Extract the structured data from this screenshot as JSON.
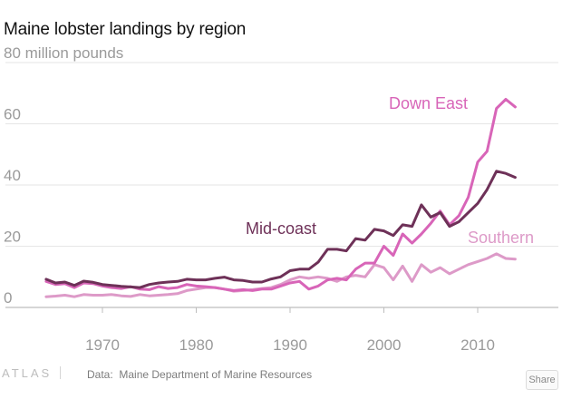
{
  "title": "Maine lobster landings by region",
  "footer": {
    "logo": "ATLAS",
    "source_label": "Data:",
    "source": "Maine Department of Marine Resources",
    "share_label": "Share"
  },
  "colors": {
    "down_east": "#d865b8",
    "mid_coast": "#6e3158",
    "southern": "#dd9ac8",
    "grid": "#e6e6e6",
    "axis": "#bdbdbd",
    "tick": "#9a9a9a"
  },
  "chart_data": {
    "type": "line",
    "title": "Maine lobster landings by region",
    "ylabel": "80 million pounds",
    "xlabel": "",
    "xlim": [
      1962,
      2020
    ],
    "ylim": [
      0,
      80
    ],
    "xticks": [
      1970,
      1980,
      1990,
      2000,
      2010
    ],
    "yticks": [
      0,
      20,
      40,
      60,
      80
    ],
    "ytick_labels": [
      "0",
      "20",
      "40",
      "60",
      "80 million pounds"
    ],
    "grid": true,
    "x": [
      1964,
      1965,
      1966,
      1967,
      1968,
      1969,
      1970,
      1971,
      1972,
      1973,
      1974,
      1975,
      1976,
      1977,
      1978,
      1979,
      1980,
      1981,
      1982,
      1983,
      1984,
      1985,
      1986,
      1987,
      1988,
      1989,
      1990,
      1991,
      1992,
      1993,
      1994,
      1995,
      1996,
      1997,
      1998,
      1999,
      2000,
      2001,
      2002,
      2003,
      2004,
      2005,
      2006,
      2007,
      2008,
      2009,
      2010,
      2011,
      2012,
      2013,
      2014
    ],
    "series": [
      {
        "name": "Down East",
        "key": "down_east",
        "values": [
          8.5,
          7.5,
          7.8,
          6.5,
          8,
          7.8,
          7,
          6.5,
          6.2,
          6.8,
          6,
          5.8,
          6.8,
          6.2,
          6.5,
          7.5,
          7,
          6.8,
          6.5,
          6,
          5.5,
          5.8,
          5.5,
          6,
          6,
          7,
          8,
          8.5,
          6,
          7,
          9,
          9.5,
          9,
          12.5,
          14.5,
          14.5,
          20,
          17,
          24,
          21,
          24,
          27.5,
          31.5,
          27,
          30,
          36,
          47.5,
          51,
          65,
          68,
          65.5
        ]
      },
      {
        "name": "Mid-coast",
        "key": "mid_coast",
        "values": [
          9.2,
          8,
          8.3,
          7.2,
          8.6,
          8.2,
          7.5,
          7.2,
          6.9,
          6.7,
          6.5,
          7.5,
          8,
          8.3,
          8.5,
          9.2,
          9,
          9,
          9.5,
          9.9,
          9,
          8.8,
          8.3,
          8.3,
          9.3,
          10,
          12,
          12.5,
          12.5,
          14.8,
          19,
          19,
          18.5,
          22.5,
          22,
          25.5,
          25,
          23.5,
          27,
          26.5,
          33.5,
          29.5,
          31,
          26.5,
          28,
          31,
          34,
          38.5,
          44.5,
          43.8,
          42.5
        ]
      },
      {
        "name": "Southern",
        "key": "southern",
        "values": [
          3.5,
          3.7,
          4,
          3.5,
          4.2,
          4,
          4,
          4.2,
          3.8,
          3.6,
          4.2,
          3.8,
          4,
          4.2,
          4.5,
          5.5,
          6,
          6.5,
          6.5,
          6,
          5.3,
          5.5,
          5.8,
          6.2,
          6.5,
          7.5,
          9,
          10,
          9.5,
          10,
          9.5,
          8.5,
          10,
          10.5,
          10,
          14,
          13,
          9,
          13.5,
          8.5,
          14,
          11.5,
          13,
          11,
          12.5,
          14,
          15,
          16,
          17.5,
          16,
          15.8
        ]
      }
    ]
  }
}
